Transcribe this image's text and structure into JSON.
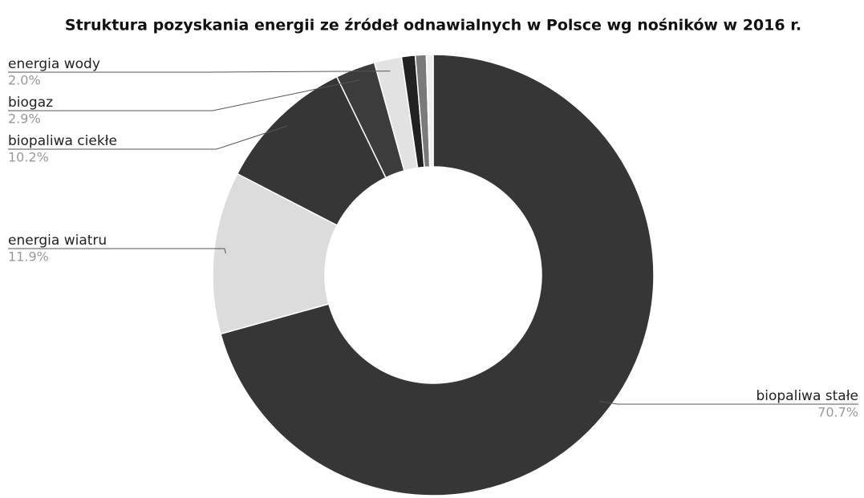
{
  "chart_data": {
    "type": "donut",
    "title": "Struktura pozyskania energii ze źródeł odnawialnych w Polsce wg nośników w 2016 r.",
    "categories": [
      "biopaliwa stałe",
      "energia wiatru",
      "biopaliwa ciekłe",
      "biogaz",
      "energia wody",
      null,
      null,
      null
    ],
    "values": [
      70.7,
      11.9,
      10.2,
      2.9,
      2.0,
      1.0,
      0.8,
      0.5
    ],
    "value_labels": [
      "70.7%",
      "11.9%",
      "10.2%",
      "2.9%",
      "2.0%",
      null,
      null,
      null
    ],
    "colors": [
      "#363636",
      "#dcdcdc",
      "#363636",
      "#3c3c3c",
      "#e2e2e2",
      "#222222",
      "#7a7a7a",
      "#f0f0f0"
    ]
  }
}
